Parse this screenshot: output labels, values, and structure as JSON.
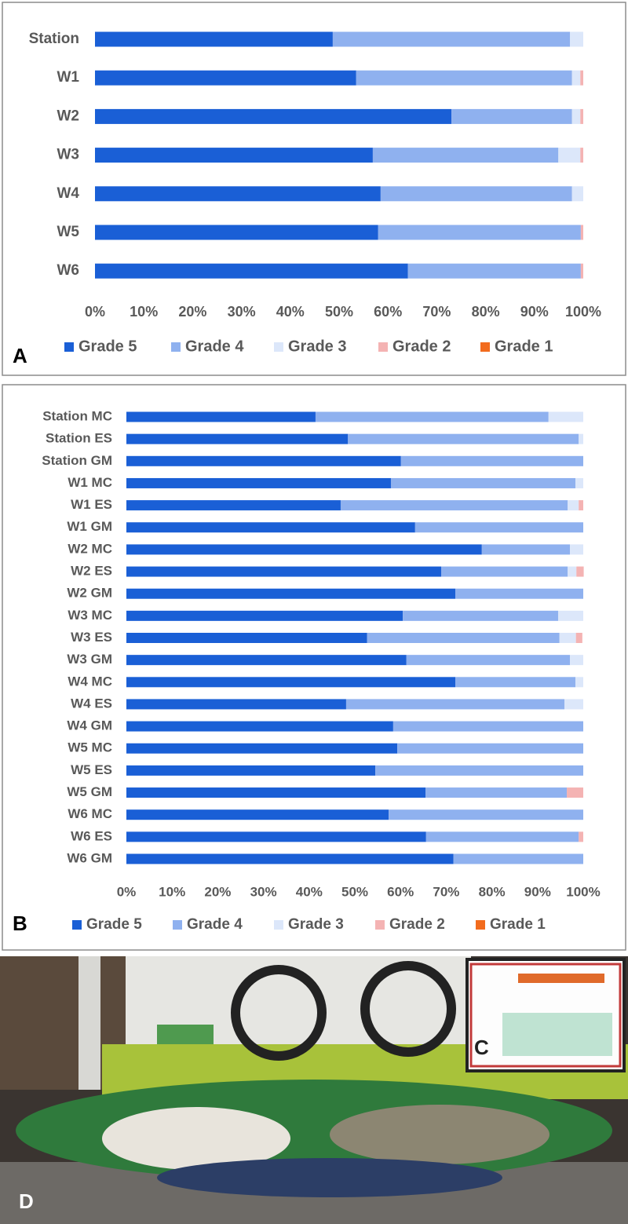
{
  "chart_data": [
    {
      "type": "stacked_barh",
      "panel_label": "A",
      "categories": [
        "Station",
        "W1",
        "W2",
        "W3",
        "W4",
        "W5",
        "W6"
      ],
      "series": [
        {
          "name": "Grade 5",
          "color": "#1a5fd6",
          "values": [
            48.7,
            53.5,
            73.0,
            56.9,
            58.5,
            58.0,
            64.1
          ]
        },
        {
          "name": "Grade 4",
          "color": "#8fb1ef",
          "values": [
            48.6,
            44.2,
            24.7,
            38.0,
            39.2,
            41.5,
            35.4
          ]
        },
        {
          "name": "Grade 3",
          "color": "#dce7fa",
          "values": [
            2.7,
            1.7,
            1.7,
            4.5,
            2.3,
            0,
            0
          ]
        },
        {
          "name": "Grade 2",
          "color": "#f4b3b3",
          "values": [
            0,
            0.6,
            0.6,
            0.6,
            0,
            0.5,
            0.5
          ]
        },
        {
          "name": "Grade 1",
          "color": "#f26b1d",
          "values": [
            0,
            0,
            0,
            0,
            0,
            0,
            0
          ]
        }
      ],
      "xlim": [
        0,
        100
      ],
      "xticks": [
        {
          "value": 0,
          "label": "0%"
        },
        {
          "value": 10,
          "label": "10%"
        },
        {
          "value": 20,
          "label": "20%"
        },
        {
          "value": 30,
          "label": "30%"
        },
        {
          "value": 40,
          "label": "40%"
        },
        {
          "value": 50,
          "label": "50%"
        },
        {
          "value": 60,
          "label": "60%"
        },
        {
          "value": 70,
          "label": "70%"
        },
        {
          "value": 80,
          "label": "80%"
        },
        {
          "value": 90,
          "label": "90%"
        },
        {
          "value": 100,
          "label": "100%"
        }
      ],
      "legend": "bottom"
    },
    {
      "type": "stacked_barh",
      "panel_label": "B",
      "categories": [
        "Station MC",
        "Station ES",
        "Station GM",
        "W1 MC",
        "W1 ES",
        "W1 GM",
        "W2 MC",
        "W2 ES",
        "W2 GM",
        "W3 MC",
        "W3 ES",
        "W3 GM",
        "W4 MC",
        "W4 ES",
        "W4 GM",
        "W5 MC",
        "W5 ES",
        "W5 GM",
        "W6 MC",
        "W6 ES",
        "W6 GM"
      ],
      "series": [
        {
          "name": "Grade 5",
          "color": "#1a5fd6",
          "values": [
            41.4,
            48.5,
            60.1,
            57.9,
            46.9,
            63.2,
            77.8,
            68.9,
            72.0,
            60.5,
            52.7,
            61.3,
            72.0,
            48.1,
            58.4,
            59.3,
            54.5,
            65.5,
            57.4,
            65.6,
            71.6
          ]
        },
        {
          "name": "Grade 4",
          "color": "#8fb1ef",
          "values": [
            51.0,
            50.5,
            39.9,
            40.4,
            49.7,
            36.8,
            19.3,
            27.7,
            28.0,
            34.0,
            42.1,
            35.8,
            26.3,
            47.8,
            41.6,
            40.7,
            45.5,
            30.9,
            42.6,
            33.4,
            28.4
          ]
        },
        {
          "name": "Grade 3",
          "color": "#dce7fa",
          "values": [
            7.6,
            1.0,
            0,
            1.7,
            2.4,
            0,
            2.9,
            1.9,
            0,
            5.5,
            3.6,
            2.9,
            1.7,
            4.1,
            0,
            0,
            0,
            0,
            0,
            0,
            0
          ]
        },
        {
          "name": "Grade 2",
          "color": "#f4b3b3",
          "values": [
            0,
            0,
            0,
            0,
            1.0,
            0,
            0,
            1.6,
            0,
            0,
            1.4,
            0,
            0,
            0,
            0,
            0,
            0,
            3.6,
            0,
            1.0,
            0
          ]
        },
        {
          "name": "Grade 1",
          "color": "#f26b1d",
          "values": [
            0,
            0,
            0,
            0,
            0,
            0,
            0,
            0,
            0,
            0,
            0,
            0,
            0,
            0,
            0,
            0,
            0,
            0,
            0,
            0,
            0
          ]
        }
      ],
      "xlim": [
        0,
        100
      ],
      "xticks": [
        {
          "value": 0,
          "label": "0%"
        },
        {
          "value": 10,
          "label": "10%"
        },
        {
          "value": 20,
          "label": "20%"
        },
        {
          "value": 30,
          "label": "30%"
        },
        {
          "value": 40,
          "label": "40%"
        },
        {
          "value": 50,
          "label": "50%"
        },
        {
          "value": 60,
          "label": "60%"
        },
        {
          "value": 70,
          "label": "70%"
        },
        {
          "value": 80,
          "label": "80%"
        },
        {
          "value": 90,
          "label": "90%"
        },
        {
          "value": 100,
          "label": "100%"
        }
      ],
      "legend": "bottom"
    }
  ],
  "photo": {
    "label": "D"
  },
  "inset": {
    "label": "C"
  }
}
